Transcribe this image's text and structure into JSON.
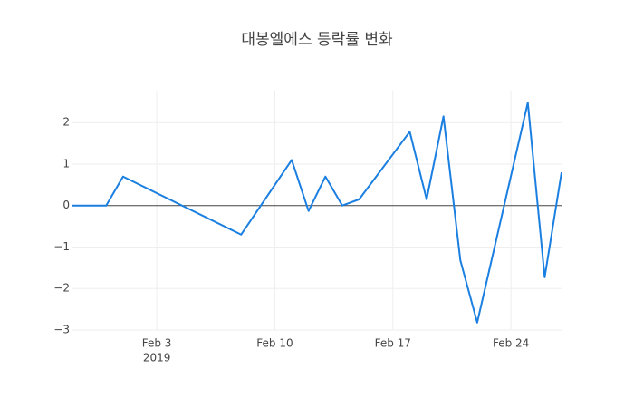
{
  "chart_data": {
    "type": "line",
    "title": "대봉엘에스 등락률 변화",
    "x": [
      "2019-01-29",
      "2019-01-30",
      "2019-01-31",
      "2019-02-01",
      "2019-02-08",
      "2019-02-11",
      "2019-02-12",
      "2019-02-13",
      "2019-02-14",
      "2019-02-15",
      "2019-02-18",
      "2019-02-19",
      "2019-02-20",
      "2019-02-21",
      "2019-02-22",
      "2019-02-25",
      "2019-02-26",
      "2019-02-27"
    ],
    "series": [
      {
        "color": "#1a7fe0",
        "values": [
          0,
          0,
          0,
          0.7,
          -0.7,
          1.1,
          -0.13,
          0.7,
          0,
          0.15,
          1.78,
          0.15,
          2.15,
          -1.32,
          -2.82,
          2.48,
          -1.73,
          0.8
        ]
      }
    ],
    "xlim": [
      "2019-01-29",
      "2019-02-27"
    ],
    "xticks": [
      {
        "value": "2019-02-03",
        "label": "Feb 3"
      },
      {
        "value": "2019-02-10",
        "label": "Feb 10"
      },
      {
        "value": "2019-02-17",
        "label": "Feb 17"
      },
      {
        "value": "2019-02-24",
        "label": "Feb 24"
      }
    ],
    "xtick_year": "2019",
    "ylim": [
      -3,
      2.77
    ],
    "yticks": [
      {
        "value": -3,
        "label": "−3"
      },
      {
        "value": -2,
        "label": "−2"
      },
      {
        "value": -1,
        "label": "−1"
      },
      0,
      1,
      2
    ],
    "grid": true
  }
}
